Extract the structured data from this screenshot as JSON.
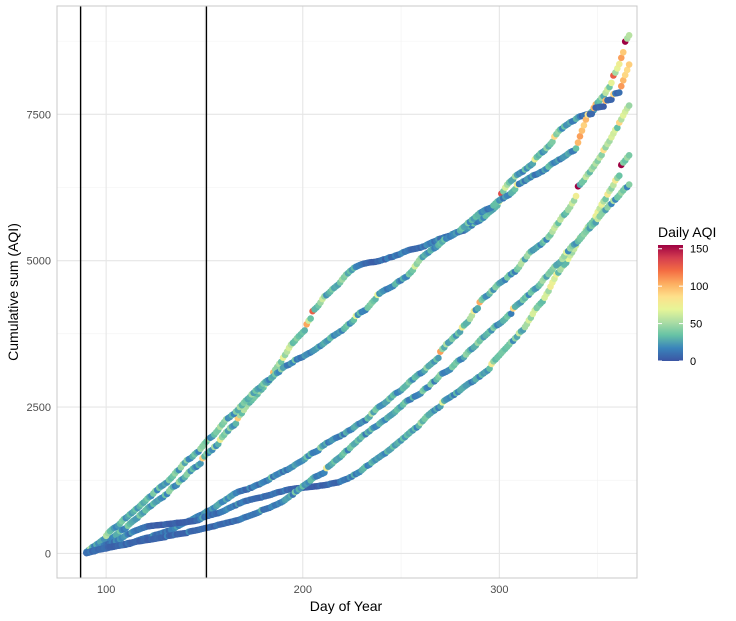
{
  "chart_data": {
    "type": "scatter",
    "xlabel": "Day of Year",
    "ylabel": "Cumulative sum (AQI)",
    "xlim": [
      75,
      370
    ],
    "ylim": [
      -420,
      9350
    ],
    "x_ticks": [
      100,
      200,
      300
    ],
    "y_ticks": [
      0,
      2500,
      5000,
      7500
    ],
    "x_tick_labels": [
      "100",
      "200",
      "300"
    ],
    "y_tick_labels": [
      "0",
      "2500",
      "5000",
      "7500"
    ],
    "vertical_lines": [
      87,
      151
    ],
    "grid": true,
    "legend_position": "right",
    "legend": {
      "title": "Daily AQI",
      "range": [
        0,
        155
      ],
      "ticks": [
        0,
        50,
        100,
        150
      ],
      "tick_labels": [
        "0",
        "50",
        "100",
        "150"
      ]
    },
    "palette": [
      "#3b55a3",
      "#3a84bb",
      "#66c2a5",
      "#abdda4",
      "#e6f598",
      "#fee08b",
      "#fdae61",
      "#f46d43",
      "#d53e4f",
      "#9e0142"
    ],
    "series": [
      {
        "endpoints": [
          [
            90,
            0
          ],
          [
            366,
            8850
          ]
        ]
      },
      {
        "endpoints": [
          [
            90,
            0
          ],
          [
            366,
            8350
          ]
        ]
      },
      {
        "endpoints": [
          [
            90,
            0
          ],
          [
            366,
            7650
          ]
        ]
      },
      {
        "endpoints": [
          [
            90,
            0
          ],
          [
            366,
            6800
          ]
        ]
      },
      {
        "endpoints": [
          [
            90,
            0
          ],
          [
            366,
            6300
          ]
        ]
      }
    ]
  }
}
